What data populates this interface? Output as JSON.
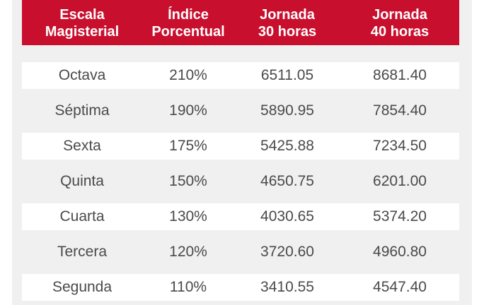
{
  "table": {
    "headers": [
      {
        "line1": "Escala",
        "line2": "Magisterial"
      },
      {
        "line1": "Índice",
        "line2": "Porcentual"
      },
      {
        "line1": "Jornada",
        "line2": "30 horas"
      },
      {
        "line1": "Jornada",
        "line2": "40 horas"
      }
    ],
    "rows": [
      [
        "Octava",
        "210%",
        "6511.05",
        "8681.40"
      ],
      [
        "Séptima",
        "190%",
        "5890.95",
        "7854.40"
      ],
      [
        "Sexta",
        "175%",
        "5425.88",
        "7234.50"
      ],
      [
        "Quinta",
        "150%",
        "4650.75",
        "6201.00"
      ],
      [
        "Cuarta",
        "130%",
        "4030.65",
        "5374.20"
      ],
      [
        "Tercera",
        "120%",
        "3720.60",
        "4960.80"
      ],
      [
        "Segunda",
        "110%",
        "3410.55",
        "4547.40"
      ]
    ]
  },
  "colors": {
    "header_background": "#c8102e",
    "header_text": "#ffffff",
    "row_light": "#ffffff",
    "row_dark": "#f0f0f0",
    "cell_text": "#4a4a4a"
  }
}
